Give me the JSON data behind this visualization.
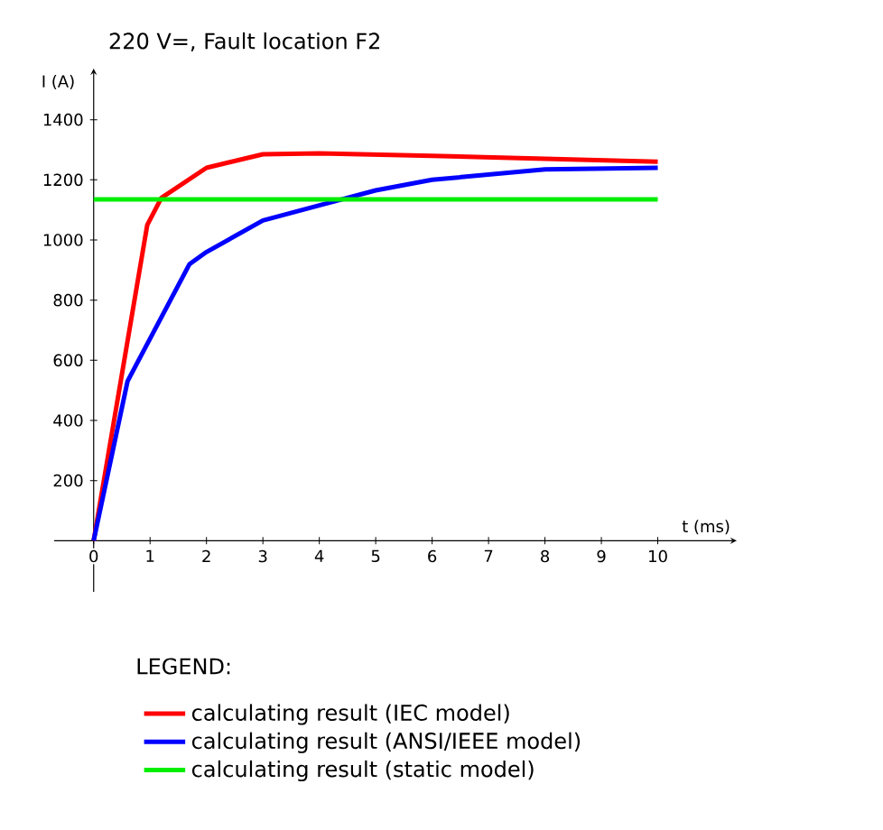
{
  "chart_data": {
    "type": "line",
    "title": "220 V=, Fault location F2",
    "xlabel": "t (ms)",
    "ylabel": "I  (A)",
    "legend_title": "LEGEND:",
    "legend": "bottom",
    "grid": false,
    "marker": "none",
    "line_style": "solid",
    "xlim": [
      -0.7,
      11.4
    ],
    "ylim": [
      -170,
      1570
    ],
    "xticks": [
      0,
      1,
      2,
      3,
      4,
      5,
      6,
      7,
      8,
      9,
      10
    ],
    "yticks": [
      200,
      400,
      600,
      800,
      1000,
      1200,
      1400
    ],
    "series": [
      {
        "name": "calculating result (IEC model)",
        "color": "#ff0000",
        "x": [
          0,
          0.95,
          1.2,
          2,
          3,
          4,
          6,
          8,
          10
        ],
        "values": [
          0,
          1050,
          1140,
          1240,
          1285,
          1288,
          1280,
          1270,
          1260
        ]
      },
      {
        "name": "calculating result (ANSI/IEEE model)",
        "color": "#0000ff",
        "x": [
          0,
          0.6,
          1.7,
          2,
          3,
          4,
          5,
          6,
          8,
          10
        ],
        "values": [
          0,
          530,
          920,
          960,
          1065,
          1115,
          1165,
          1200,
          1235,
          1240
        ]
      },
      {
        "name": "calculating result (static model)",
        "color": "#00ee00",
        "x": [
          0,
          10
        ],
        "values": [
          1135,
          1135
        ]
      }
    ]
  }
}
